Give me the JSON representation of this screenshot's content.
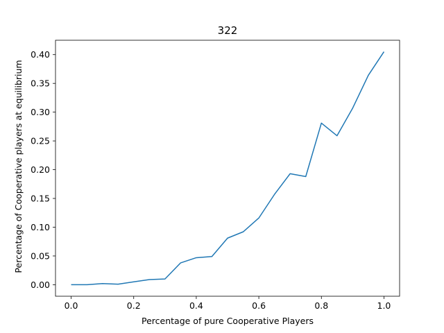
{
  "chart_data": {
    "type": "line",
    "title": "322",
    "xlabel": "Percentage of pure Cooperative Players",
    "ylabel": "Percentage of Cooperative players at equilibrium",
    "xlim": [
      -0.05,
      1.05
    ],
    "ylim": [
      -0.02,
      0.425
    ],
    "grid": false,
    "xticks": [
      0.0,
      0.2,
      0.4,
      0.6,
      0.8,
      1.0
    ],
    "xtick_labels": [
      "0.0",
      "0.2",
      "0.4",
      "0.6",
      "0.8",
      "1.0"
    ],
    "yticks": [
      0.0,
      0.05,
      0.1,
      0.15,
      0.2,
      0.25,
      0.3,
      0.35,
      0.4
    ],
    "ytick_labels": [
      "0.00",
      "0.05",
      "0.10",
      "0.15",
      "0.20",
      "0.25",
      "0.30",
      "0.35",
      "0.40"
    ],
    "series": [
      {
        "color": "#1f77b4",
        "x": [
          0.0,
          0.05,
          0.1,
          0.15,
          0.2,
          0.25,
          0.3,
          0.35,
          0.4,
          0.45,
          0.5,
          0.55,
          0.6,
          0.65,
          0.7,
          0.75,
          0.8,
          0.85,
          0.9,
          0.95,
          1.0
        ],
        "y": [
          0.0,
          0.0,
          0.002,
          0.001,
          0.005,
          0.009,
          0.01,
          0.038,
          0.047,
          0.049,
          0.081,
          0.092,
          0.116,
          0.157,
          0.193,
          0.188,
          0.281,
          0.259,
          0.307,
          0.364,
          0.405
        ]
      }
    ]
  }
}
